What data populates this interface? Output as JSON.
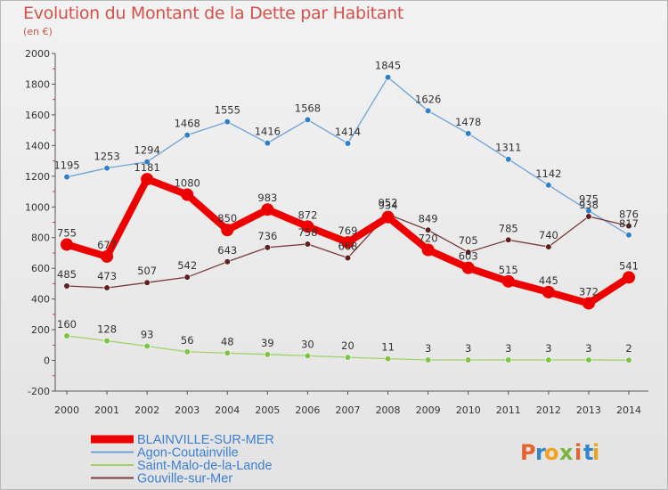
{
  "title": "Evolution du Montant de la Dette par Habitant",
  "unit_label": "(en €)",
  "logo": {
    "text": "Proxiti",
    "letters": [
      {
        "ch": "P",
        "color": "#e5632c"
      },
      {
        "ch": "r",
        "color": "#2f86c8"
      },
      {
        "ch": "o",
        "color": "#f2a21f"
      },
      {
        "ch": "x",
        "color": "#7ab53c"
      },
      {
        "ch": "i",
        "color": "#e5632c"
      },
      {
        "ch": "t",
        "color": "#2f86c8"
      },
      {
        "ch": "i",
        "color": "#f2a21f"
      }
    ]
  },
  "chart_data": {
    "type": "line",
    "title": "Evolution du Montant de la Dette par Habitant",
    "ylabel": "(en €)",
    "xlabel": "",
    "ylim": [
      -200,
      2000
    ],
    "yticks": [
      -200,
      0,
      200,
      400,
      600,
      800,
      1000,
      1200,
      1400,
      1600,
      1800,
      2000
    ],
    "grid": false,
    "legend_position": "bottom-left",
    "x": [
      "2000",
      "2001",
      "2002",
      "2003",
      "2004",
      "2005",
      "2006",
      "2007",
      "2008",
      "2009",
      "2010",
      "2011",
      "2012",
      "2013",
      "2014"
    ],
    "series": [
      {
        "name": "BLAINVILLE-SUR-MER",
        "color": "#ee0000",
        "emphasis": true,
        "values": [
          755,
          677,
          1181,
          1080,
          850,
          983,
          872,
          769,
          934,
          720,
          603,
          515,
          445,
          372,
          541
        ],
        "labels": [
          "755",
          "677",
          "1181",
          "1080",
          "850",
          "983",
          "872",
          "769",
          "934",
          "720",
          "603",
          "515",
          "445",
          "372",
          "541"
        ]
      },
      {
        "name": "Agon-Coutainville",
        "color": "#6fa3d6",
        "marker_color": "#2f7fc6",
        "values": [
          1195,
          1253,
          1294,
          1468,
          1555,
          1416,
          1568,
          1414,
          1845,
          1626,
          1478,
          1311,
          1142,
          975,
          817
        ],
        "labels": [
          "1195",
          "1253",
          "1294",
          "1468",
          "1555",
          "1416",
          "1568",
          "1414",
          "1845",
          "1626",
          "1478",
          "1311",
          "1142",
          "975",
          "817"
        ]
      },
      {
        "name": "Saint-Malo-de-la-Lande",
        "color": "#9fd26a",
        "marker_color": "#7ec246",
        "values": [
          160,
          128,
          93,
          56,
          48,
          39,
          30,
          20,
          11,
          3,
          3,
          3,
          3,
          3,
          2
        ],
        "labels": [
          "160",
          "128",
          "93",
          "56",
          "48",
          "39",
          "30",
          "20",
          "11",
          "3",
          "3",
          "3",
          "3",
          "3",
          "2"
        ]
      },
      {
        "name": "Gouville-sur-Mer",
        "color": "#7a3b3b",
        "marker_color": "#5e1f1f",
        "values": [
          485,
          473,
          507,
          542,
          643,
          736,
          758,
          668,
          952,
          849,
          705,
          785,
          740,
          938,
          876
        ],
        "labels": [
          "485",
          "473",
          "507",
          "542",
          "643",
          "736",
          "758",
          "668",
          "952",
          "849",
          "705",
          "785",
          "740",
          "938",
          "876"
        ]
      }
    ]
  }
}
